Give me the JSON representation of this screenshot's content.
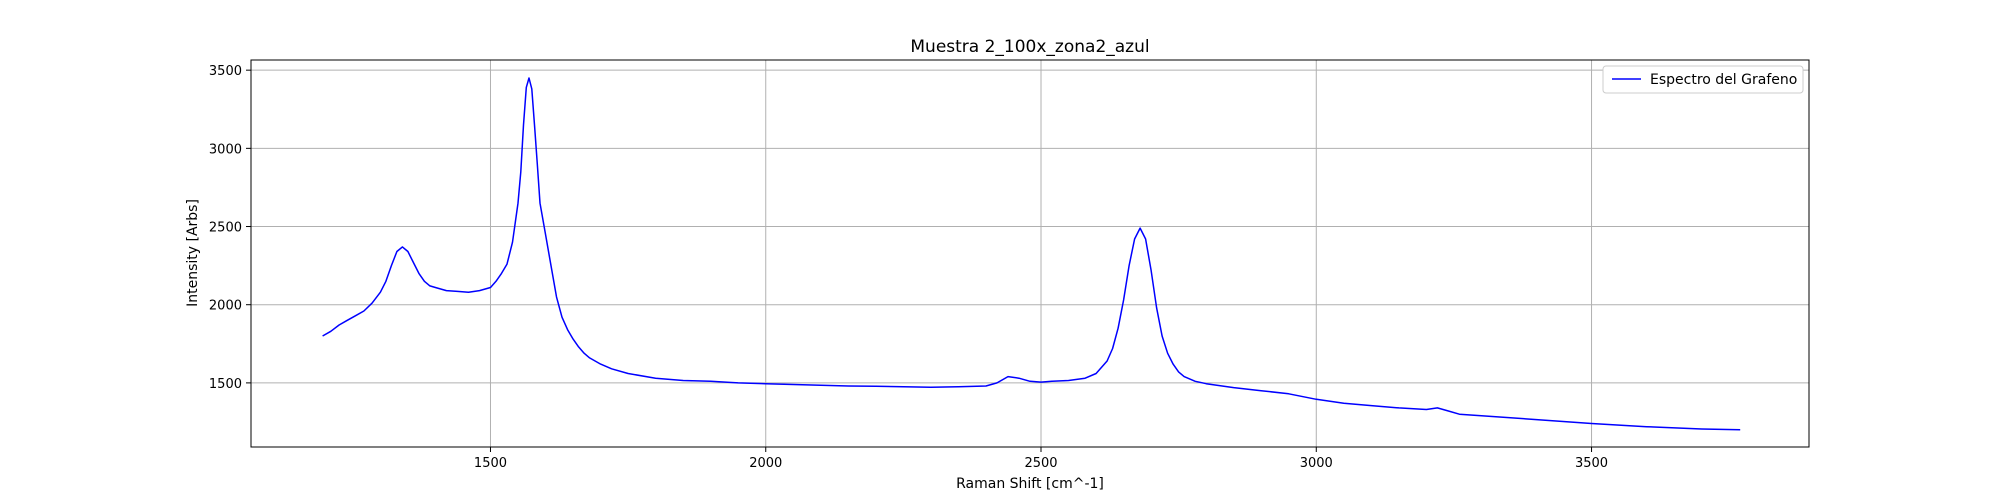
{
  "chart_data": {
    "type": "line",
    "title": "Muestra 2_100x_zona2_azul",
    "xlabel": "Raman Shift [cm^-1]",
    "ylabel": "Intensity [Arbs]",
    "xlim": [
      1065,
      3895
    ],
    "ylim": [
      1090,
      3565
    ],
    "xticks": [
      1500,
      2000,
      2500,
      3000,
      3500
    ],
    "yticks": [
      1500,
      2000,
      2500,
      3000,
      3500
    ],
    "grid": true,
    "legend_position": "top-right",
    "series": [
      {
        "name": "Espectro del Grafeno",
        "color": "#0000ff",
        "x": [
          1195,
          1210,
          1225,
          1240,
          1255,
          1270,
          1285,
          1300,
          1310,
          1320,
          1330,
          1340,
          1350,
          1360,
          1370,
          1380,
          1390,
          1400,
          1420,
          1440,
          1460,
          1480,
          1500,
          1510,
          1520,
          1530,
          1540,
          1550,
          1555,
          1560,
          1565,
          1570,
          1575,
          1580,
          1585,
          1590,
          1600,
          1610,
          1620,
          1630,
          1640,
          1650,
          1660,
          1670,
          1680,
          1700,
          1720,
          1750,
          1800,
          1850,
          1900,
          1950,
          2000,
          2050,
          2100,
          2150,
          2200,
          2250,
          2300,
          2350,
          2400,
          2420,
          2440,
          2460,
          2480,
          2500,
          2520,
          2550,
          2580,
          2600,
          2620,
          2630,
          2640,
          2650,
          2660,
          2670,
          2680,
          2690,
          2700,
          2710,
          2720,
          2730,
          2740,
          2750,
          2760,
          2780,
          2800,
          2850,
          2900,
          2950,
          3000,
          3050,
          3100,
          3150,
          3200,
          3220,
          3240,
          3260,
          3300,
          3400,
          3500,
          3600,
          3700,
          3770
        ],
        "y": [
          1800,
          1830,
          1870,
          1900,
          1930,
          1960,
          2010,
          2080,
          2150,
          2250,
          2340,
          2370,
          2340,
          2270,
          2200,
          2150,
          2120,
          2110,
          2090,
          2085,
          2080,
          2090,
          2110,
          2150,
          2200,
          2260,
          2400,
          2650,
          2850,
          3150,
          3390,
          3450,
          3380,
          3150,
          2900,
          2650,
          2450,
          2250,
          2050,
          1920,
          1840,
          1780,
          1730,
          1690,
          1660,
          1620,
          1590,
          1560,
          1530,
          1515,
          1510,
          1500,
          1495,
          1490,
          1485,
          1480,
          1478,
          1475,
          1472,
          1475,
          1480,
          1500,
          1540,
          1530,
          1510,
          1505,
          1510,
          1515,
          1530,
          1560,
          1640,
          1720,
          1850,
          2030,
          2250,
          2420,
          2490,
          2420,
          2220,
          1980,
          1800,
          1690,
          1620,
          1570,
          1540,
          1510,
          1495,
          1470,
          1450,
          1430,
          1395,
          1370,
          1355,
          1340,
          1330,
          1340,
          1320,
          1300,
          1290,
          1265,
          1240,
          1220,
          1205,
          1200
        ]
      }
    ]
  }
}
